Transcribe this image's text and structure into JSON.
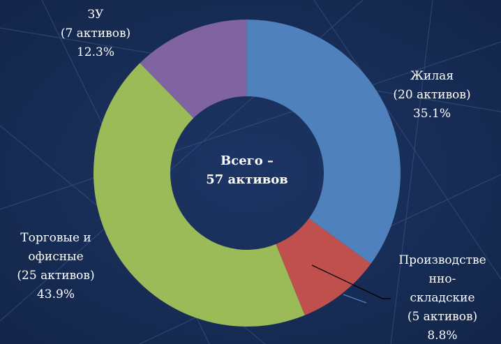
{
  "chart_data": {
    "type": "donut",
    "categories": [
      "Жилая",
      "Производстве\nнно-\nскладские",
      "Торговые и\nофисные",
      "ЗУ"
    ],
    "sublabels": [
      "(20 активов)",
      "(5 активов)",
      "(25 активов)",
      "(7 активов)"
    ],
    "values": [
      35.1,
      8.8,
      43.9,
      12.3
    ],
    "value_labels": [
      "35.1%",
      "8.8%",
      "43.9%",
      "12.3%"
    ],
    "colors": [
      "#4f81bd",
      "#c0504d",
      "#9bbb59",
      "#8064a2"
    ],
    "center_text": "Всего –\n57 активов"
  }
}
